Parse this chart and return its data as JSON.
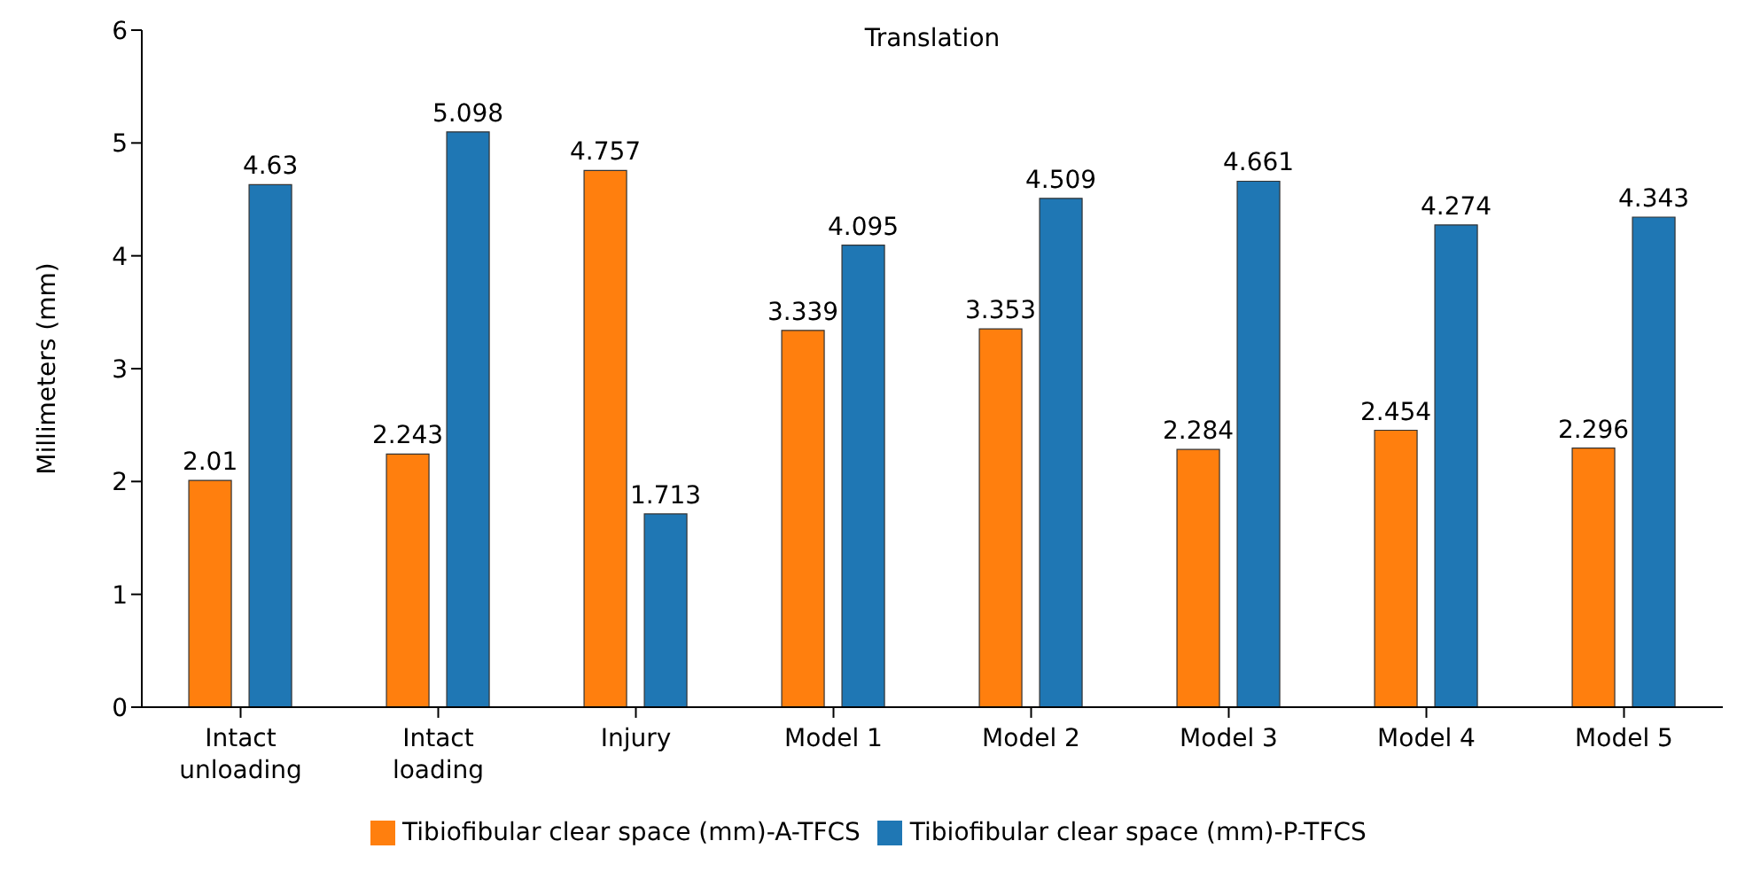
{
  "chart_data": {
    "type": "bar",
    "title": "Translation",
    "ylabel": "Millimeters (mm)",
    "categories": [
      "Intact unloading",
      "Intact loading",
      "Injury",
      "Model 1",
      "Model 2",
      "Model 3",
      "Model 4",
      "Model 5"
    ],
    "series": [
      {
        "name": "Tibiofibular clear space (mm)-A-TFCS",
        "color": "#ff7f0e",
        "values": [
          2.01,
          2.243,
          4.757,
          3.339,
          3.353,
          2.284,
          2.454,
          2.296
        ]
      },
      {
        "name": "Tibiofibular clear space (mm)-P-TFCS",
        "color": "#1f77b4",
        "values": [
          4.63,
          5.098,
          1.713,
          4.095,
          4.509,
          4.661,
          4.274,
          4.343
        ]
      }
    ],
    "ylim": [
      0,
      6
    ],
    "yticks": [
      0,
      1,
      2,
      3,
      4,
      5,
      6
    ],
    "data_labels": true,
    "legend": "bottom",
    "grid": false
  }
}
